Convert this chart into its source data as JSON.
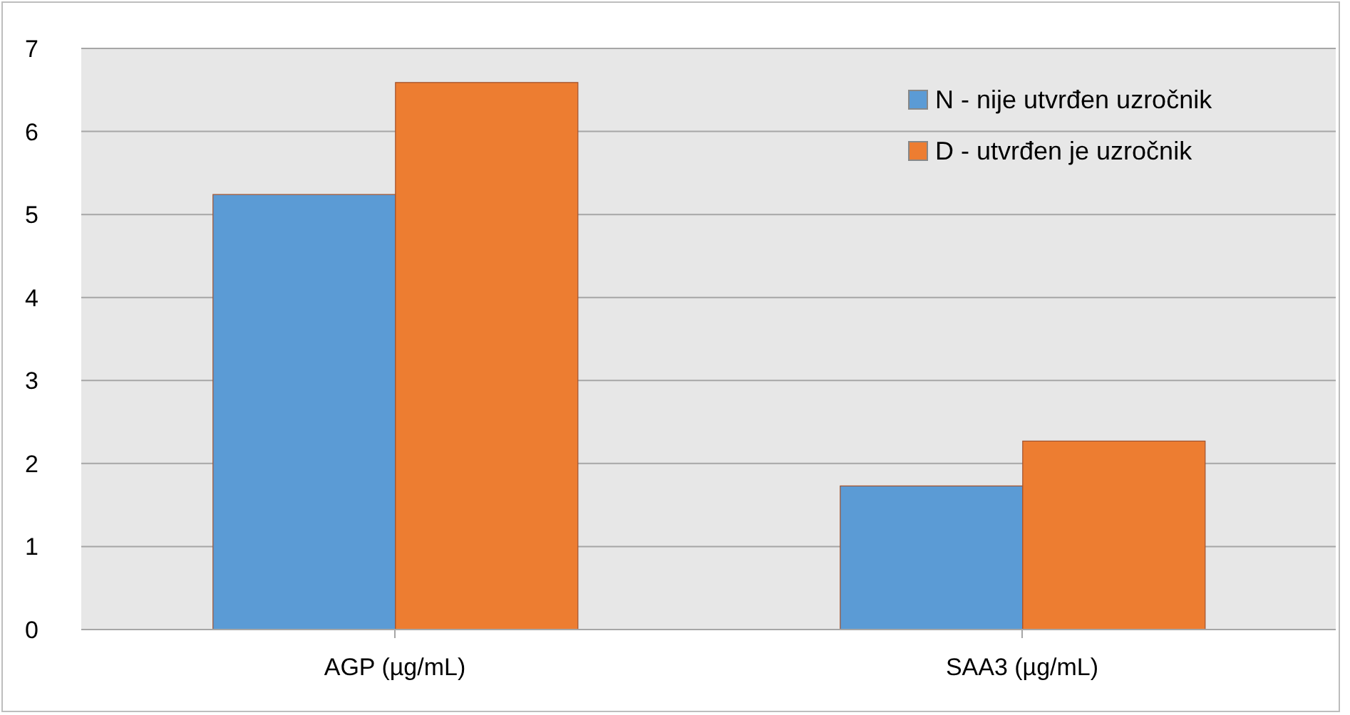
{
  "chart_data": {
    "type": "bar",
    "categories": [
      "AGP (µg/mL)",
      "SAA3 (µg/mL)"
    ],
    "series": [
      {
        "name": "N - nije utvrđen uzročnik",
        "color": "#5b9bd5",
        "values": [
          5.24,
          1.73
        ]
      },
      {
        "name": "D - utvrđen je uzročnik",
        "color": "#ed7d31",
        "values": [
          6.59,
          2.27
        ]
      }
    ],
    "ylim": [
      0,
      7
    ],
    "yticks": [
      0,
      1,
      2,
      3,
      4,
      5,
      6,
      7
    ],
    "grid": "y",
    "legend": "top right"
  }
}
